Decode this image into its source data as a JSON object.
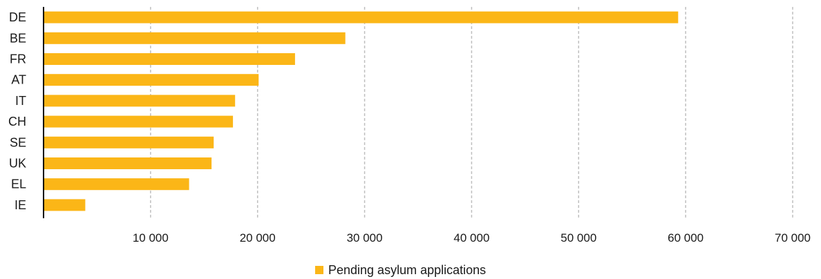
{
  "chart_data": {
    "type": "bar",
    "orientation": "horizontal",
    "categories": [
      "DE",
      "BE",
      "FR",
      "AT",
      "IT",
      "CH",
      "SE",
      "UK",
      "EL",
      "IE"
    ],
    "series": [
      {
        "name": "Pending asylum applications",
        "values": [
          59300,
          28200,
          23500,
          20100,
          17900,
          17700,
          15900,
          15700,
          13600,
          3900
        ]
      }
    ],
    "xlim": [
      0,
      70000
    ],
    "x_ticks": [
      10000,
      20000,
      30000,
      40000,
      50000,
      60000,
      70000
    ],
    "x_tick_labels": [
      "10 000",
      "20 000",
      "30 000",
      "40 000",
      "50 000",
      "60 000",
      "70 000"
    ],
    "grid": "vertical dashed",
    "legend_position": "bottom-center",
    "bar_color": "#FBB617",
    "grid_color": "#bfbfbf",
    "axis_color": "#000000"
  }
}
